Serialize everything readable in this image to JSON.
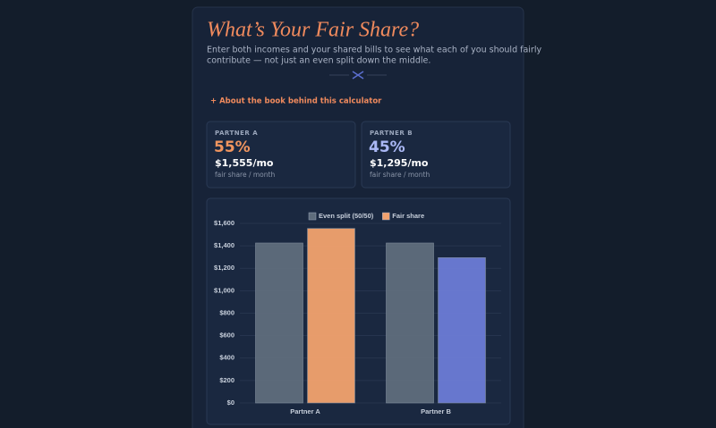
{
  "header": {
    "title": "What’s Your Fair Share?",
    "subtitle_lines": [
      "Enter both incomes and your shared bills to see what each of you should fairly",
      "contribute — not just an even split down the middle."
    ]
  },
  "link": "+ About the book behind this calculator",
  "cards": [
    {
      "label": "PARTNER A",
      "percent": "55%",
      "amount": "$1,555/mo",
      "caption": "fair share / month"
    },
    {
      "label": "PARTNER B",
      "percent": "45%",
      "amount": "$1,295/mo",
      "caption": "fair share / month"
    }
  ],
  "chart_data": {
    "type": "bar",
    "categories": [
      "Partner A",
      "Partner B"
    ],
    "series": [
      {
        "name": "Even split (50/50)",
        "color": "#5f6d7c",
        "values": [
          1425,
          1425
        ]
      },
      {
        "name": "Fair share",
        "color": "#f2a26e",
        "colors": [
          "#f2a26e",
          "#6b7bd6"
        ],
        "values": [
          1555,
          1295
        ]
      }
    ],
    "ylim": [
      0,
      1600
    ],
    "yticks": [
      {
        "value": 0,
        "label": "$0"
      },
      {
        "value": 200,
        "label": "$200"
      },
      {
        "value": 400,
        "label": "$400"
      },
      {
        "value": 600,
        "label": "$600"
      },
      {
        "value": 800,
        "label": "$800"
      },
      {
        "value": 1000,
        "label": "$1,000"
      },
      {
        "value": 1200,
        "label": "$1,200"
      },
      {
        "value": 1400,
        "label": "$1,400"
      },
      {
        "value": 1600,
        "label": "$1,600"
      }
    ],
    "grid": true,
    "legend": "top"
  }
}
